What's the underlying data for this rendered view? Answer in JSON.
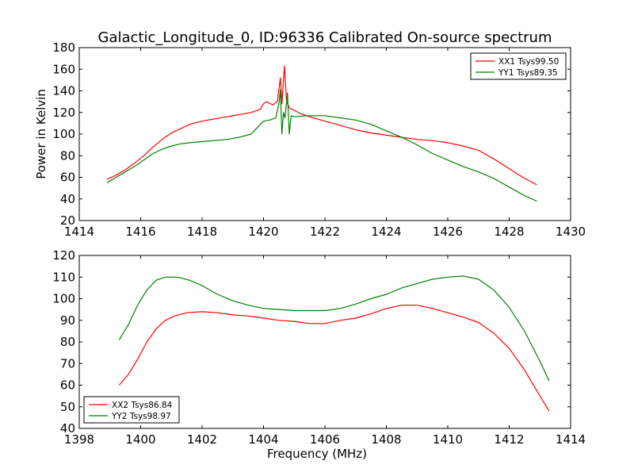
{
  "title": "Galactic_Longitude_0, ID:96336 Calibrated On-source spectrum",
  "colors": {
    "red": "#ff0000",
    "green": "#007f00",
    "axes": "#000000"
  },
  "chart_data": [
    {
      "type": "line",
      "title": "Galactic_Longitude_0, ID:96336 Calibrated On-source spectrum",
      "xlabel": "",
      "ylabel": "Power in Kelvin",
      "xlim": [
        1414,
        1430
      ],
      "ylim": [
        20,
        180
      ],
      "xticks": [
        1414,
        1416,
        1418,
        1420,
        1422,
        1424,
        1426,
        1428,
        1430
      ],
      "yticks": [
        20,
        40,
        60,
        80,
        100,
        120,
        140,
        160,
        180
      ],
      "legend_position": "top-right",
      "grid": false,
      "series": [
        {
          "name": "XX1 Tsys99.50",
          "color": "#ff0000",
          "points": [
            [
              1414.9,
              58
            ],
            [
              1415.2,
              62
            ],
            [
              1415.5,
              67
            ],
            [
              1415.8,
              73
            ],
            [
              1416.1,
              80
            ],
            [
              1416.4,
              88
            ],
            [
              1416.7,
              95
            ],
            [
              1417.0,
              101
            ],
            [
              1417.3,
              105
            ],
            [
              1417.6,
              109
            ],
            [
              1418.0,
              112
            ],
            [
              1418.4,
              114
            ],
            [
              1418.8,
              116
            ],
            [
              1419.2,
              118
            ],
            [
              1419.6,
              120
            ],
            [
              1419.9,
              123
            ],
            [
              1420.0,
              128
            ],
            [
              1420.1,
              130
            ],
            [
              1420.3,
              127
            ],
            [
              1420.45,
              130
            ],
            [
              1420.55,
              152
            ],
            [
              1420.6,
              128
            ],
            [
              1420.68,
              163
            ],
            [
              1420.75,
              130
            ],
            [
              1420.85,
              124
            ],
            [
              1421.0,
              122
            ],
            [
              1421.2,
              119
            ],
            [
              1421.5,
              116
            ],
            [
              1422.0,
              112
            ],
            [
              1422.5,
              108
            ],
            [
              1423.0,
              104
            ],
            [
              1423.5,
              101
            ],
            [
              1424.0,
              99
            ],
            [
              1424.5,
              97
            ],
            [
              1425.0,
              95
            ],
            [
              1425.5,
              94
            ],
            [
              1426.0,
              92
            ],
            [
              1426.5,
              89
            ],
            [
              1427.0,
              85
            ],
            [
              1427.5,
              77
            ],
            [
              1428.0,
              68
            ],
            [
              1428.5,
              59
            ],
            [
              1428.9,
              53
            ]
          ]
        },
        {
          "name": "YY1 Tsys89.35",
          "color": "#007f00",
          "points": [
            [
              1414.9,
              55
            ],
            [
              1415.2,
              60
            ],
            [
              1415.5,
              65
            ],
            [
              1415.8,
              70
            ],
            [
              1416.1,
              76
            ],
            [
              1416.4,
              82
            ],
            [
              1416.7,
              86
            ],
            [
              1417.0,
              89
            ],
            [
              1417.3,
              91
            ],
            [
              1417.6,
              92
            ],
            [
              1418.0,
              93
            ],
            [
              1418.4,
              94
            ],
            [
              1418.8,
              95
            ],
            [
              1419.2,
              97
            ],
            [
              1419.6,
              100
            ],
            [
              1419.8,
              106
            ],
            [
              1420.0,
              112
            ],
            [
              1420.2,
              113
            ],
            [
              1420.4,
              115
            ],
            [
              1420.5,
              128
            ],
            [
              1420.55,
              141
            ],
            [
              1420.6,
              100
            ],
            [
              1420.65,
              120
            ],
            [
              1420.7,
              115
            ],
            [
              1420.78,
              138
            ],
            [
              1420.84,
              100
            ],
            [
              1420.9,
              117
            ],
            [
              1421.0,
              116
            ],
            [
              1421.5,
              117
            ],
            [
              1422.0,
              117
            ],
            [
              1422.5,
              115
            ],
            [
              1423.0,
              113
            ],
            [
              1423.5,
              109
            ],
            [
              1424.0,
              103
            ],
            [
              1424.5,
              97
            ],
            [
              1425.0,
              90
            ],
            [
              1425.5,
              82
            ],
            [
              1426.0,
              76
            ],
            [
              1426.5,
              70
            ],
            [
              1427.0,
              65
            ],
            [
              1427.5,
              59
            ],
            [
              1428.0,
              51
            ],
            [
              1428.5,
              43
            ],
            [
              1428.9,
              38
            ]
          ]
        }
      ]
    },
    {
      "type": "line",
      "title": "",
      "xlabel": "Frequency (MHz)",
      "ylabel": "",
      "xlim": [
        1398,
        1414
      ],
      "ylim": [
        40,
        120
      ],
      "xticks": [
        1398,
        1400,
        1402,
        1404,
        1406,
        1408,
        1410,
        1412,
        1414
      ],
      "yticks": [
        40,
        50,
        60,
        70,
        80,
        90,
        100,
        110,
        120
      ],
      "legend_position": "bottom-left",
      "grid": false,
      "series": [
        {
          "name": "XX2 Tsys86.84",
          "color": "#ff0000",
          "points": [
            [
              1399.3,
              60
            ],
            [
              1399.6,
              65
            ],
            [
              1399.9,
              72
            ],
            [
              1400.2,
              80
            ],
            [
              1400.5,
              86
            ],
            [
              1400.8,
              90
            ],
            [
              1401.1,
              92
            ],
            [
              1401.5,
              93.5
            ],
            [
              1402.0,
              94
            ],
            [
              1402.5,
              93.5
            ],
            [
              1403.0,
              92.5
            ],
            [
              1403.5,
              92
            ],
            [
              1404.0,
              91
            ],
            [
              1404.5,
              90
            ],
            [
              1405.0,
              89.5
            ],
            [
              1405.5,
              88.5
            ],
            [
              1406.0,
              88.5
            ],
            [
              1406.5,
              90
            ],
            [
              1407.0,
              91
            ],
            [
              1407.5,
              93
            ],
            [
              1408.0,
              95.5
            ],
            [
              1408.5,
              97
            ],
            [
              1409.0,
              97
            ],
            [
              1409.5,
              95.5
            ],
            [
              1410.0,
              93.5
            ],
            [
              1410.5,
              91.5
            ],
            [
              1411.0,
              89
            ],
            [
              1411.5,
              84
            ],
            [
              1412.0,
              77
            ],
            [
              1412.5,
              67
            ],
            [
              1413.0,
              55
            ],
            [
              1413.3,
              48
            ]
          ]
        },
        {
          "name": "YY2 Tsys98.97",
          "color": "#007f00",
          "points": [
            [
              1399.3,
              81
            ],
            [
              1399.6,
              88
            ],
            [
              1399.9,
              97
            ],
            [
              1400.2,
              104
            ],
            [
              1400.5,
              108.5
            ],
            [
              1400.8,
              110
            ],
            [
              1401.2,
              110
            ],
            [
              1401.6,
              108.5
            ],
            [
              1402.0,
              106
            ],
            [
              1402.5,
              102
            ],
            [
              1403.0,
              99
            ],
            [
              1403.5,
              97
            ],
            [
              1404.0,
              95.5
            ],
            [
              1404.5,
              95
            ],
            [
              1405.0,
              94.5
            ],
            [
              1405.5,
              94.5
            ],
            [
              1406.0,
              94.5
            ],
            [
              1406.5,
              95.5
            ],
            [
              1407.0,
              97.5
            ],
            [
              1407.5,
              100
            ],
            [
              1408.0,
              102
            ],
            [
              1408.5,
              105
            ],
            [
              1409.0,
              107
            ],
            [
              1409.5,
              109
            ],
            [
              1410.0,
              110
            ],
            [
              1410.5,
              110.5
            ],
            [
              1411.0,
              109
            ],
            [
              1411.5,
              104
            ],
            [
              1412.0,
              96
            ],
            [
              1412.5,
              85
            ],
            [
              1413.0,
              71
            ],
            [
              1413.3,
              62
            ]
          ]
        }
      ]
    }
  ]
}
